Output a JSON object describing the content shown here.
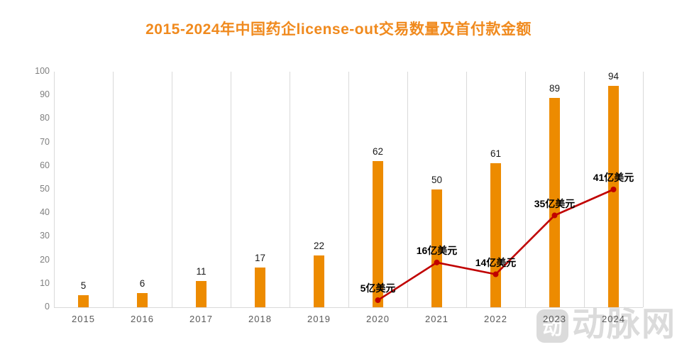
{
  "chart_data": {
    "type": "combo-bar-line",
    "title": "2015-2024年中国药企license-out交易数量及首付款金额",
    "title_color": "#F08A1E",
    "categories": [
      "2015",
      "2016",
      "2017",
      "2018",
      "2019",
      "2020",
      "2021",
      "2022",
      "2023",
      "2024"
    ],
    "series": [
      {
        "name": "license-out交易数量",
        "type": "bar",
        "color": "#ED8B00",
        "values": [
          5,
          6,
          11,
          17,
          22,
          62,
          50,
          61,
          89,
          94
        ]
      },
      {
        "name": "首付款金额",
        "type": "line",
        "color": "#C00000",
        "unit": "亿美元",
        "points": [
          {
            "category": "2020",
            "value": 5,
            "label": "5亿美元"
          },
          {
            "category": "2021",
            "value": 16,
            "label": "16亿美元"
          },
          {
            "category": "2022",
            "value": 14,
            "label": "14亿美元"
          },
          {
            "category": "2023",
            "value": 35,
            "label": "35亿美元"
          },
          {
            "category": "2024",
            "value": 41,
            "label": "41亿美元"
          }
        ],
        "plotted_y_on_left_axis": [
          3,
          19,
          14,
          39,
          50
        ]
      }
    ],
    "ylim": [
      0,
      100
    ],
    "yticks": [
      0,
      10,
      20,
      30,
      40,
      50,
      60,
      70,
      80,
      90,
      100
    ],
    "grid": "vertical-only",
    "legend": "none",
    "axis_color": "#D9D9D9",
    "tick_label_color": "#7F7F7F",
    "xlabel_color": "#595959",
    "bar_label_color": "#1A1A1A"
  },
  "watermark": {
    "logo_glyph": "动",
    "text": "动脉网",
    "color": "#DBDBDB"
  }
}
